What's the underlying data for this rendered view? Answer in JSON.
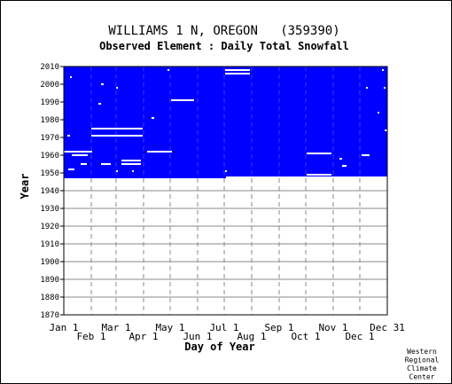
{
  "chart_data": {
    "type": "heatmap",
    "title": "WILLIAMS 1 N, OREGON   (359390)",
    "subtitle": "Observed Element : Daily Total Snowfall",
    "xlabel": "Day of Year",
    "ylabel": "Year",
    "credit": [
      "Western",
      "Regional",
      "Climate",
      "Center"
    ],
    "x_ticks_top_row": [
      "Jan 1",
      "Mar 1",
      "May 1",
      "Jul 1",
      "Sep 1",
      "Nov 1",
      "Dec 31"
    ],
    "x_ticks_bottom_row": [
      "Feb 1",
      "Apr 1",
      "Jun 1",
      "Aug 1",
      "Oct 1",
      "Dec 1"
    ],
    "xlim": [
      1,
      366
    ],
    "ylim": [
      1870,
      2010
    ],
    "y_ticks": [
      1870,
      1880,
      1890,
      1900,
      1910,
      1920,
      1930,
      1940,
      1950,
      1960,
      1970,
      1980,
      1990,
      2000,
      2010
    ],
    "colors": {
      "observed": "#0000ff",
      "missing": "#ffffff",
      "grid": "#888888"
    },
    "observed_block": {
      "year_start": 1947,
      "year_end_early": 1948,
      "year_end": 2010,
      "switch_day": 184
    },
    "missing_segments": [
      {
        "year": 2008,
        "day_start": 183,
        "day_end": 211
      },
      {
        "year": 2006,
        "day_start": 183,
        "day_end": 211
      },
      {
        "year": 1991,
        "day_start": 122,
        "day_end": 148
      },
      {
        "year": 1975,
        "day_start": 32,
        "day_end": 90
      },
      {
        "year": 1971,
        "day_start": 32,
        "day_end": 90
      },
      {
        "year": 1962,
        "day_start": 1,
        "day_end": 33
      },
      {
        "year": 1962,
        "day_start": 95,
        "day_end": 123
      },
      {
        "year": 1961,
        "day_start": 275,
        "day_end": 303
      },
      {
        "year": 1960,
        "day_start": 10,
        "day_end": 28
      },
      {
        "year": 1960,
        "day_start": 337,
        "day_end": 346
      },
      {
        "year": 1957,
        "day_start": 66,
        "day_end": 88
      },
      {
        "year": 1955,
        "day_start": 66,
        "day_end": 88
      },
      {
        "year": 1955,
        "day_start": 20,
        "day_end": 27
      },
      {
        "year": 1955,
        "day_start": 43,
        "day_end": 54
      },
      {
        "year": 1949,
        "day_start": 275,
        "day_end": 303
      },
      {
        "year": 1954,
        "day_start": 315,
        "day_end": 320
      },
      {
        "year": 1971,
        "day_start": 5,
        "day_end": 8
      },
      {
        "year": 1989,
        "day_start": 40,
        "day_end": 43
      },
      {
        "year": 1952,
        "day_start": 6,
        "day_end": 13
      },
      {
        "year": 1998,
        "day_start": 60,
        "day_end": 62
      },
      {
        "year": 2000,
        "day_start": 43,
        "day_end": 46
      },
      {
        "year": 2004,
        "day_start": 8,
        "day_end": 10
      },
      {
        "year": 2008,
        "day_start": 118,
        "day_end": 120
      },
      {
        "year": 1981,
        "day_start": 100,
        "day_end": 103
      },
      {
        "year": 1974,
        "day_start": 363,
        "day_end": 366
      },
      {
        "year": 1984,
        "day_start": 355,
        "day_end": 357
      },
      {
        "year": 1998,
        "day_start": 342,
        "day_end": 344
      },
      {
        "year": 2008,
        "day_start": 360,
        "day_end": 362
      },
      {
        "year": 1998,
        "day_start": 362,
        "day_end": 364
      },
      {
        "year": 1951,
        "day_start": 183,
        "day_end": 185
      },
      {
        "year": 1951,
        "day_start": 78,
        "day_end": 80
      },
      {
        "year": 1951,
        "day_start": 60,
        "day_end": 62
      },
      {
        "year": 1958,
        "day_start": 312,
        "day_end": 315
      }
    ]
  }
}
